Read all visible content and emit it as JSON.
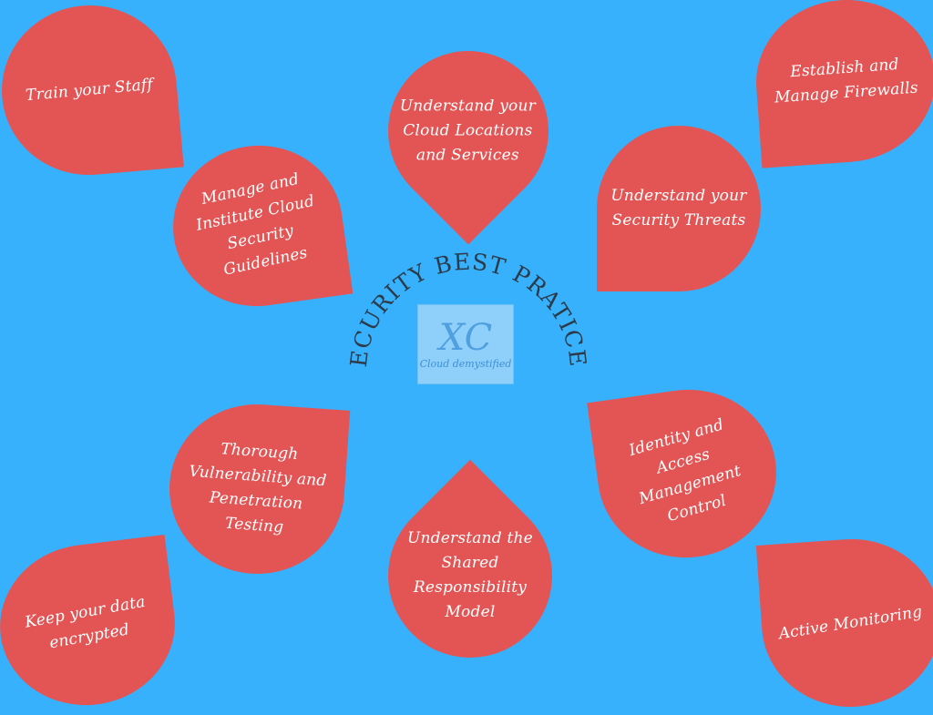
{
  "title": "SECURITY BEST PRATICES",
  "logo": {
    "mark": "XC",
    "text": "Cloud demystified"
  },
  "colors": {
    "background": "#37b1fb",
    "bubble": "#e35555",
    "text": "#ffffff",
    "title": "#2c3a4a"
  },
  "items": {
    "train": [
      "Train your Staff"
    ],
    "cloud": [
      "Understand your",
      "Cloud Locations",
      "and Services"
    ],
    "firewall": [
      "Establish and",
      "Manage Firewalls"
    ],
    "manage": [
      "Manage and",
      "Institute Cloud",
      "Security",
      "Guidelines"
    ],
    "threats": [
      "Understand your",
      "Security Threats"
    ],
    "pentest": [
      "Thorough",
      "Vulnerability and",
      "Penetration",
      "Testing"
    ],
    "shared": [
      "Understand the",
      "Shared",
      "Responsibility",
      "Model"
    ],
    "identity": [
      "Identity and",
      "Access",
      "Management",
      "Control"
    ],
    "encrypt": [
      "Keep your data",
      "encrypted"
    ],
    "monitor": [
      "Active Monitoring"
    ]
  }
}
